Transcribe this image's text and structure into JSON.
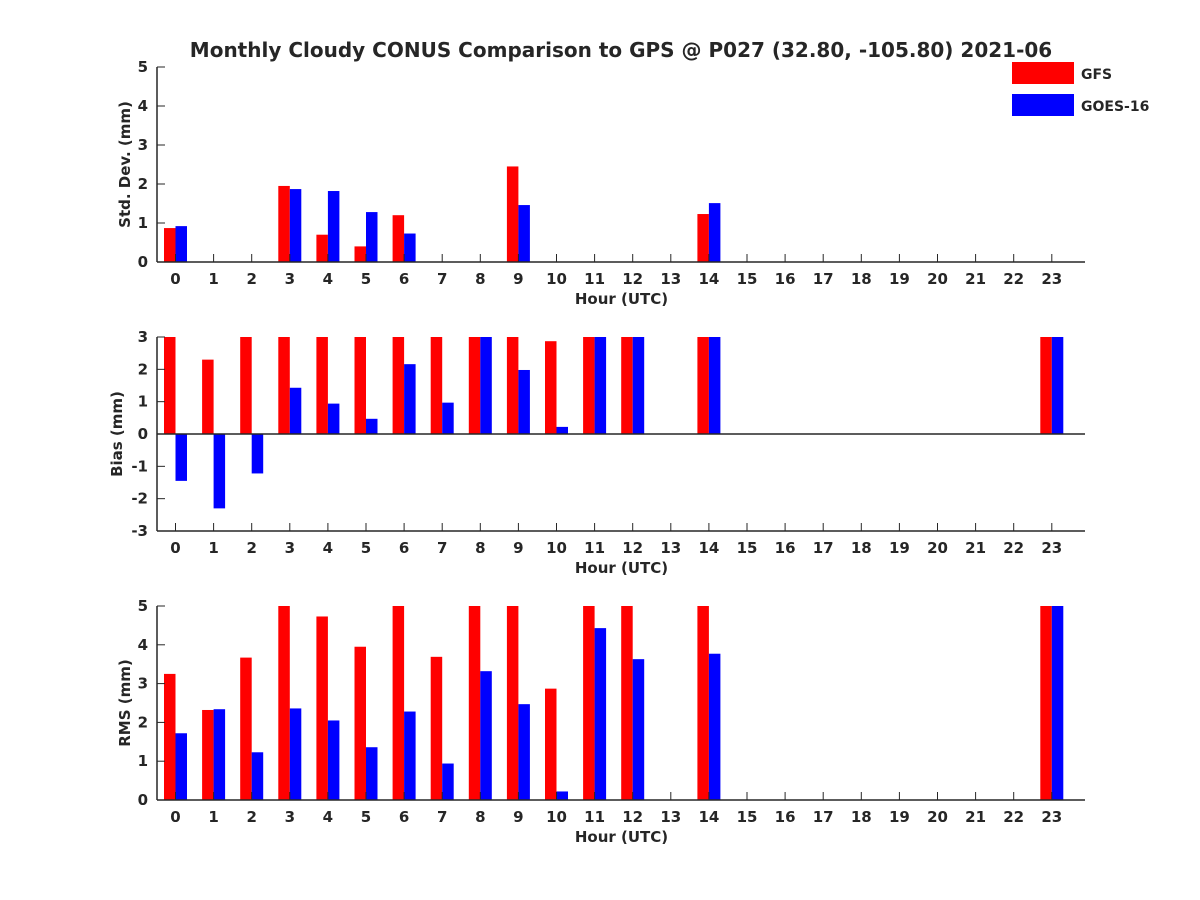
{
  "title": "Monthly Cloudy CONUS Comparison to GPS @ P027 (32.80, -105.80) 2021-06",
  "colors": {
    "GFS": "#ff0000",
    "GOES-16": "#0000ff",
    "axis": "#262626"
  },
  "legend": [
    {
      "name": "GFS",
      "color": "#ff0000"
    },
    {
      "name": "GOES-16",
      "color": "#0000ff"
    }
  ],
  "chart_data": [
    {
      "type": "bar",
      "title": "Monthly Cloudy CONUS Comparison to GPS @ P027 (32.80, -105.80) 2021-06",
      "xlabel": "Hour (UTC)",
      "ylabel": "Std. Dev. (mm)",
      "ylim": [
        0,
        5
      ],
      "yticks": [
        "0",
        "1",
        "2",
        "3",
        "4",
        "5"
      ],
      "categories": [
        "0",
        "1",
        "2",
        "3",
        "4",
        "5",
        "6",
        "7",
        "8",
        "9",
        "10",
        "11",
        "12",
        "13",
        "14",
        "15",
        "16",
        "17",
        "18",
        "19",
        "20",
        "21",
        "22",
        "23"
      ],
      "legend_position": "top-right",
      "series": [
        {
          "name": "GFS",
          "values": [
            0.87,
            0,
            0,
            1.95,
            0.7,
            0.4,
            1.2,
            0,
            0,
            2.45,
            0,
            0,
            0,
            0,
            1.23,
            0,
            0,
            0,
            0,
            0,
            0,
            0,
            0,
            0
          ]
        },
        {
          "name": "GOES-16",
          "values": [
            0.92,
            0,
            0,
            1.87,
            1.82,
            1.28,
            0.73,
            0,
            0,
            1.46,
            0,
            0,
            0,
            0,
            1.51,
            0,
            0,
            0,
            0,
            0,
            0,
            0,
            0,
            0
          ]
        }
      ]
    },
    {
      "type": "bar",
      "xlabel": "Hour (UTC)",
      "ylabel": "Bias (mm)",
      "ylim": [
        -3,
        3
      ],
      "yticks": [
        "-3",
        "-2",
        "-1",
        "0",
        "1",
        "2",
        "3"
      ],
      "categories": [
        "0",
        "1",
        "2",
        "3",
        "4",
        "5",
        "6",
        "7",
        "8",
        "9",
        "10",
        "11",
        "12",
        "13",
        "14",
        "15",
        "16",
        "17",
        "18",
        "19",
        "20",
        "21",
        "22",
        "23"
      ],
      "series": [
        {
          "name": "GFS",
          "values": [
            3,
            2.3,
            3,
            3,
            3,
            3,
            3,
            3,
            3,
            3,
            2.87,
            3,
            3,
            0,
            3,
            0,
            0,
            0,
            0,
            0,
            0,
            0,
            0,
            3
          ]
        },
        {
          "name": "GOES-16",
          "values": [
            -1.45,
            -2.3,
            -1.22,
            1.43,
            0.94,
            0.47,
            2.16,
            0.97,
            3,
            1.98,
            0.22,
            3,
            3,
            0,
            3,
            0,
            0,
            0,
            0,
            0,
            0,
            0,
            0,
            3
          ]
        }
      ]
    },
    {
      "type": "bar",
      "xlabel": "Hour (UTC)",
      "ylabel": "RMS (mm)",
      "ylim": [
        0,
        5
      ],
      "yticks": [
        "0",
        "1",
        "2",
        "3",
        "4",
        "5"
      ],
      "categories": [
        "0",
        "1",
        "2",
        "3",
        "4",
        "5",
        "6",
        "7",
        "8",
        "9",
        "10",
        "11",
        "12",
        "13",
        "14",
        "15",
        "16",
        "17",
        "18",
        "19",
        "20",
        "21",
        "22",
        "23"
      ],
      "series": [
        {
          "name": "GFS",
          "values": [
            3.25,
            2.32,
            3.67,
            5,
            4.73,
            3.95,
            5,
            3.69,
            5,
            5,
            2.87,
            5,
            5,
            0,
            5,
            0,
            0,
            0,
            0,
            0,
            0,
            0,
            0,
            5
          ]
        },
        {
          "name": "GOES-16",
          "values": [
            1.72,
            2.34,
            1.23,
            2.36,
            2.05,
            1.36,
            2.28,
            0.94,
            3.32,
            2.47,
            0.22,
            4.43,
            3.63,
            0,
            3.77,
            0,
            0,
            0,
            0,
            0,
            0,
            0,
            0,
            5
          ]
        }
      ]
    }
  ]
}
